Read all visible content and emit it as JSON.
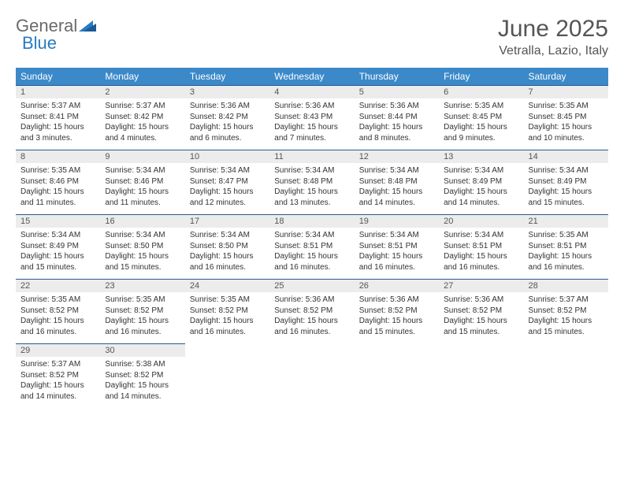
{
  "logo": {
    "text1": "General",
    "text2": "Blue"
  },
  "title": "June 2025",
  "location": "Vetralla, Lazio, Italy",
  "colors": {
    "header_bg": "#3b89c9",
    "header_text": "#ffffff",
    "daynum_bg": "#ececec",
    "border": "#2a5a8a",
    "logo_gray": "#6a6a6a",
    "logo_blue": "#2a7ac0"
  },
  "dayNames": [
    "Sunday",
    "Monday",
    "Tuesday",
    "Wednesday",
    "Thursday",
    "Friday",
    "Saturday"
  ],
  "weeks": [
    [
      {
        "n": "1",
        "sr": "Sunrise: 5:37 AM",
        "ss": "Sunset: 8:41 PM",
        "d1": "Daylight: 15 hours",
        "d2": "and 3 minutes."
      },
      {
        "n": "2",
        "sr": "Sunrise: 5:37 AM",
        "ss": "Sunset: 8:42 PM",
        "d1": "Daylight: 15 hours",
        "d2": "and 4 minutes."
      },
      {
        "n": "3",
        "sr": "Sunrise: 5:36 AM",
        "ss": "Sunset: 8:42 PM",
        "d1": "Daylight: 15 hours",
        "d2": "and 6 minutes."
      },
      {
        "n": "4",
        "sr": "Sunrise: 5:36 AM",
        "ss": "Sunset: 8:43 PM",
        "d1": "Daylight: 15 hours",
        "d2": "and 7 minutes."
      },
      {
        "n": "5",
        "sr": "Sunrise: 5:36 AM",
        "ss": "Sunset: 8:44 PM",
        "d1": "Daylight: 15 hours",
        "d2": "and 8 minutes."
      },
      {
        "n": "6",
        "sr": "Sunrise: 5:35 AM",
        "ss": "Sunset: 8:45 PM",
        "d1": "Daylight: 15 hours",
        "d2": "and 9 minutes."
      },
      {
        "n": "7",
        "sr": "Sunrise: 5:35 AM",
        "ss": "Sunset: 8:45 PM",
        "d1": "Daylight: 15 hours",
        "d2": "and 10 minutes."
      }
    ],
    [
      {
        "n": "8",
        "sr": "Sunrise: 5:35 AM",
        "ss": "Sunset: 8:46 PM",
        "d1": "Daylight: 15 hours",
        "d2": "and 11 minutes."
      },
      {
        "n": "9",
        "sr": "Sunrise: 5:34 AM",
        "ss": "Sunset: 8:46 PM",
        "d1": "Daylight: 15 hours",
        "d2": "and 11 minutes."
      },
      {
        "n": "10",
        "sr": "Sunrise: 5:34 AM",
        "ss": "Sunset: 8:47 PM",
        "d1": "Daylight: 15 hours",
        "d2": "and 12 minutes."
      },
      {
        "n": "11",
        "sr": "Sunrise: 5:34 AM",
        "ss": "Sunset: 8:48 PM",
        "d1": "Daylight: 15 hours",
        "d2": "and 13 minutes."
      },
      {
        "n": "12",
        "sr": "Sunrise: 5:34 AM",
        "ss": "Sunset: 8:48 PM",
        "d1": "Daylight: 15 hours",
        "d2": "and 14 minutes."
      },
      {
        "n": "13",
        "sr": "Sunrise: 5:34 AM",
        "ss": "Sunset: 8:49 PM",
        "d1": "Daylight: 15 hours",
        "d2": "and 14 minutes."
      },
      {
        "n": "14",
        "sr": "Sunrise: 5:34 AM",
        "ss": "Sunset: 8:49 PM",
        "d1": "Daylight: 15 hours",
        "d2": "and 15 minutes."
      }
    ],
    [
      {
        "n": "15",
        "sr": "Sunrise: 5:34 AM",
        "ss": "Sunset: 8:49 PM",
        "d1": "Daylight: 15 hours",
        "d2": "and 15 minutes."
      },
      {
        "n": "16",
        "sr": "Sunrise: 5:34 AM",
        "ss": "Sunset: 8:50 PM",
        "d1": "Daylight: 15 hours",
        "d2": "and 15 minutes."
      },
      {
        "n": "17",
        "sr": "Sunrise: 5:34 AM",
        "ss": "Sunset: 8:50 PM",
        "d1": "Daylight: 15 hours",
        "d2": "and 16 minutes."
      },
      {
        "n": "18",
        "sr": "Sunrise: 5:34 AM",
        "ss": "Sunset: 8:51 PM",
        "d1": "Daylight: 15 hours",
        "d2": "and 16 minutes."
      },
      {
        "n": "19",
        "sr": "Sunrise: 5:34 AM",
        "ss": "Sunset: 8:51 PM",
        "d1": "Daylight: 15 hours",
        "d2": "and 16 minutes."
      },
      {
        "n": "20",
        "sr": "Sunrise: 5:34 AM",
        "ss": "Sunset: 8:51 PM",
        "d1": "Daylight: 15 hours",
        "d2": "and 16 minutes."
      },
      {
        "n": "21",
        "sr": "Sunrise: 5:35 AM",
        "ss": "Sunset: 8:51 PM",
        "d1": "Daylight: 15 hours",
        "d2": "and 16 minutes."
      }
    ],
    [
      {
        "n": "22",
        "sr": "Sunrise: 5:35 AM",
        "ss": "Sunset: 8:52 PM",
        "d1": "Daylight: 15 hours",
        "d2": "and 16 minutes."
      },
      {
        "n": "23",
        "sr": "Sunrise: 5:35 AM",
        "ss": "Sunset: 8:52 PM",
        "d1": "Daylight: 15 hours",
        "d2": "and 16 minutes."
      },
      {
        "n": "24",
        "sr": "Sunrise: 5:35 AM",
        "ss": "Sunset: 8:52 PM",
        "d1": "Daylight: 15 hours",
        "d2": "and 16 minutes."
      },
      {
        "n": "25",
        "sr": "Sunrise: 5:36 AM",
        "ss": "Sunset: 8:52 PM",
        "d1": "Daylight: 15 hours",
        "d2": "and 16 minutes."
      },
      {
        "n": "26",
        "sr": "Sunrise: 5:36 AM",
        "ss": "Sunset: 8:52 PM",
        "d1": "Daylight: 15 hours",
        "d2": "and 15 minutes."
      },
      {
        "n": "27",
        "sr": "Sunrise: 5:36 AM",
        "ss": "Sunset: 8:52 PM",
        "d1": "Daylight: 15 hours",
        "d2": "and 15 minutes."
      },
      {
        "n": "28",
        "sr": "Sunrise: 5:37 AM",
        "ss": "Sunset: 8:52 PM",
        "d1": "Daylight: 15 hours",
        "d2": "and 15 minutes."
      }
    ],
    [
      {
        "n": "29",
        "sr": "Sunrise: 5:37 AM",
        "ss": "Sunset: 8:52 PM",
        "d1": "Daylight: 15 hours",
        "d2": "and 14 minutes."
      },
      {
        "n": "30",
        "sr": "Sunrise: 5:38 AM",
        "ss": "Sunset: 8:52 PM",
        "d1": "Daylight: 15 hours",
        "d2": "and 14 minutes."
      },
      null,
      null,
      null,
      null,
      null
    ]
  ]
}
